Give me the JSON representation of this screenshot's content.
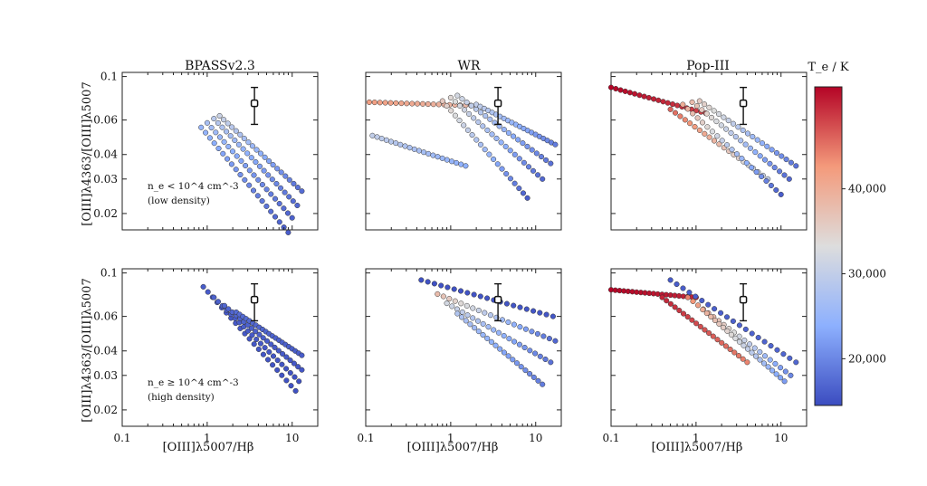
{
  "chart_data": {
    "type": "scatter",
    "grid": false,
    "x_scale": "log",
    "y_scale": "log",
    "xlim": [
      0.1,
      20
    ],
    "ylim": [
      0.0165,
      0.105
    ],
    "xlabel": "[OIII]λ5007/Hβ",
    "ylabel": "[OIII]λ4363/[OIII]λ5007",
    "x_ticks": [
      0.1,
      1,
      10
    ],
    "x_tick_labels": [
      "0.1",
      "1",
      "10"
    ],
    "y_ticks": [
      0.02,
      0.03,
      0.04,
      0.06,
      0.1
    ],
    "y_tick_labels": [
      "0.02",
      "0.03",
      "0.04",
      "0.06",
      "0.1"
    ],
    "columns": [
      "BPASSv2.3",
      "WR",
      "Pop-III"
    ],
    "rows": [
      {
        "name": "low-density",
        "annotation_line1": "n_e < 10^4 cm^-3",
        "annotation_line2": "(low density)"
      },
      {
        "name": "high-density",
        "annotation_line1": "n_e ≥ 10^4 cm^-3",
        "annotation_line2": "(high density)"
      }
    ],
    "observation": {
      "x": 3.6,
      "y": 0.073,
      "y_low": 0.057,
      "y_high": 0.088
    },
    "colorbar": {
      "label": "T_e / K",
      "range": [
        14500,
        52000
      ],
      "ticks": [
        20000,
        30000,
        40000
      ],
      "tick_labels": [
        "20,000",
        "30,000",
        "40,000"
      ],
      "colormap": "coolwarm"
    },
    "models": [
      {
        "row": 0,
        "col": 0,
        "tracks": [
          {
            "x0": 0.85,
            "x1": 9.0,
            "y0": 0.055,
            "y1": 0.016,
            "t0": 25000,
            "t1": 16000
          },
          {
            "x0": 1.0,
            "x1": 10.0,
            "y0": 0.058,
            "y1": 0.019,
            "t0": 27000,
            "t1": 16500
          },
          {
            "x0": 1.2,
            "x1": 11.5,
            "y0": 0.061,
            "y1": 0.022,
            "t0": 29000,
            "t1": 17000
          },
          {
            "x0": 1.4,
            "x1": 13.0,
            "y0": 0.063,
            "y1": 0.026,
            "t0": 31000,
            "t1": 17500
          }
        ]
      },
      {
        "row": 0,
        "col": 1,
        "tracks": [
          {
            "x0": 0.11,
            "x1": 2.0,
            "y0": 0.074,
            "y1": 0.071,
            "t0": 42000,
            "t1": 38000
          },
          {
            "x0": 0.12,
            "x1": 1.5,
            "y0": 0.05,
            "y1": 0.035,
            "t0": 30000,
            "t1": 24000
          },
          {
            "x0": 0.8,
            "x1": 8.0,
            "y0": 0.075,
            "y1": 0.024,
            "t0": 36000,
            "t1": 16000
          },
          {
            "x0": 1.0,
            "x1": 12.0,
            "y0": 0.078,
            "y1": 0.03,
            "t0": 34000,
            "t1": 17000
          },
          {
            "x0": 1.2,
            "x1": 15.0,
            "y0": 0.08,
            "y1": 0.036,
            "t0": 32000,
            "t1": 18000
          },
          {
            "x0": 2.0,
            "x1": 17.0,
            "y0": 0.072,
            "y1": 0.045,
            "t0": 30000,
            "t1": 19000
          }
        ]
      },
      {
        "row": 0,
        "col": 2,
        "tracks": [
          {
            "x0": 0.1,
            "x1": 1.3,
            "y0": 0.088,
            "y1": 0.065,
            "t0": 52000,
            "t1": 48000
          },
          {
            "x0": 0.5,
            "x1": 7.0,
            "y0": 0.068,
            "y1": 0.03,
            "t0": 46000,
            "t1": 30000
          },
          {
            "x0": 0.7,
            "x1": 10.0,
            "y0": 0.072,
            "y1": 0.025,
            "t0": 40000,
            "t1": 16000
          },
          {
            "x0": 0.9,
            "x1": 12.5,
            "y0": 0.074,
            "y1": 0.03,
            "t0": 38000,
            "t1": 17000
          },
          {
            "x0": 1.1,
            "x1": 15.0,
            "y0": 0.075,
            "y1": 0.035,
            "t0": 36000,
            "t1": 18000
          }
        ]
      },
      {
        "row": 1,
        "col": 0,
        "tracks": [
          {
            "x0": 0.9,
            "x1": 11.0,
            "y0": 0.085,
            "y1": 0.025,
            "t0": 16000,
            "t1": 15000
          },
          {
            "x0": 1.2,
            "x1": 12.0,
            "y0": 0.075,
            "y1": 0.028,
            "t0": 16500,
            "t1": 15000
          },
          {
            "x0": 1.6,
            "x1": 13.0,
            "y0": 0.068,
            "y1": 0.032,
            "t0": 17000,
            "t1": 15500
          },
          {
            "x0": 2.2,
            "x1": 13.0,
            "y0": 0.063,
            "y1": 0.038,
            "t0": 17500,
            "t1": 16000
          }
        ]
      },
      {
        "row": 1,
        "col": 1,
        "tracks": [
          {
            "x0": 0.45,
            "x1": 16.0,
            "y0": 0.092,
            "y1": 0.06,
            "t0": 15000,
            "t1": 15500
          },
          {
            "x0": 0.7,
            "x1": 17.0,
            "y0": 0.078,
            "y1": 0.045,
            "t0": 38000,
            "t1": 17000
          },
          {
            "x0": 0.9,
            "x1": 15.0,
            "y0": 0.07,
            "y1": 0.035,
            "t0": 32000,
            "t1": 18000
          },
          {
            "x0": 1.2,
            "x1": 12.0,
            "y0": 0.062,
            "y1": 0.027,
            "t0": 28000,
            "t1": 19000
          }
        ]
      },
      {
        "row": 1,
        "col": 2,
        "tracks": [
          {
            "x0": 0.1,
            "x1": 1.0,
            "y0": 0.082,
            "y1": 0.075,
            "t0": 52000,
            "t1": 50000
          },
          {
            "x0": 0.4,
            "x1": 4.0,
            "y0": 0.075,
            "y1": 0.035,
            "t0": 50000,
            "t1": 44000
          },
          {
            "x0": 0.5,
            "x1": 15.0,
            "y0": 0.092,
            "y1": 0.035,
            "t0": 16000,
            "t1": 17000
          },
          {
            "x0": 0.8,
            "x1": 13.0,
            "y0": 0.075,
            "y1": 0.03,
            "t0": 44000,
            "t1": 20000
          },
          {
            "x0": 1.2,
            "x1": 11.0,
            "y0": 0.065,
            "y1": 0.028,
            "t0": 40000,
            "t1": 22000
          }
        ]
      }
    ]
  }
}
